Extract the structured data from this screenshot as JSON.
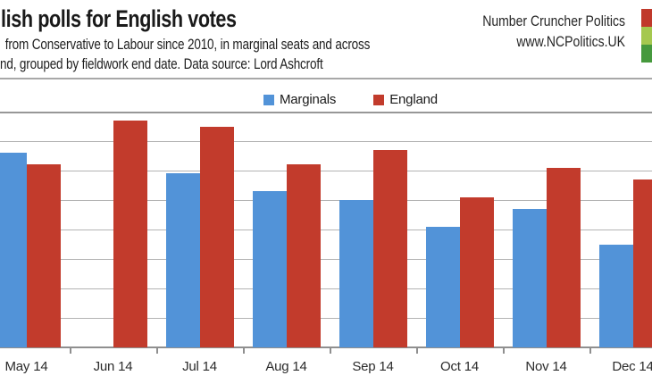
{
  "header": {
    "title": "lish polls for English votes",
    "subtitle_line1": "from Conservative to Labour since 2010, in marginal seats and across",
    "subtitle_line2": "nd, grouped by fieldwork end date. Data source: Lord Ashcroft",
    "brand_name": "Number Cruncher Politics",
    "brand_url": "www.NCPolitics.UK"
  },
  "logo": {
    "squares": [
      {
        "name": "red-square",
        "color": "#C0392B"
      },
      {
        "name": "light-green-square",
        "color": "#A5C84F"
      },
      {
        "name": "dark-green-square",
        "color": "#46993D"
      }
    ]
  },
  "legend": [
    {
      "label": "Marginals",
      "color": "#5293D8"
    },
    {
      "label": "England",
      "color": "#C23B2C"
    }
  ],
  "chart_data": {
    "type": "bar",
    "title": "lish polls for English votes",
    "categories": [
      "May 14",
      "Jun 14",
      "Jul 14",
      "Aug 14",
      "Sep 14",
      "Oct 14",
      "Nov 14",
      "Dec 14"
    ],
    "series": [
      {
        "name": "Marginals",
        "color": "#5293D8",
        "values": [
          6.6,
          null,
          5.9,
          5.3,
          5.0,
          4.1,
          4.7,
          3.5
        ]
      },
      {
        "name": "England",
        "color": "#C23B2C",
        "values": [
          6.2,
          7.7,
          7.5,
          6.2,
          6.7,
          5.1,
          6.1,
          5.7
        ]
      }
    ],
    "xlabel": "",
    "ylabel": "",
    "ylim": [
      0,
      8
    ],
    "gridline_interval": 1,
    "grid": "horizontal",
    "legend_position": "top-center",
    "y_axis_labels_visible": false,
    "values_estimated": true,
    "notes": "Image is cropped on the left and right: y-axis labels are out of frame, title and subtitle are truncated, Dec 14 England bar and logo are clipped at right edge. Jun 14 has no Marginals bar. Values estimated assuming one gridline = 1 unit from baseline."
  }
}
